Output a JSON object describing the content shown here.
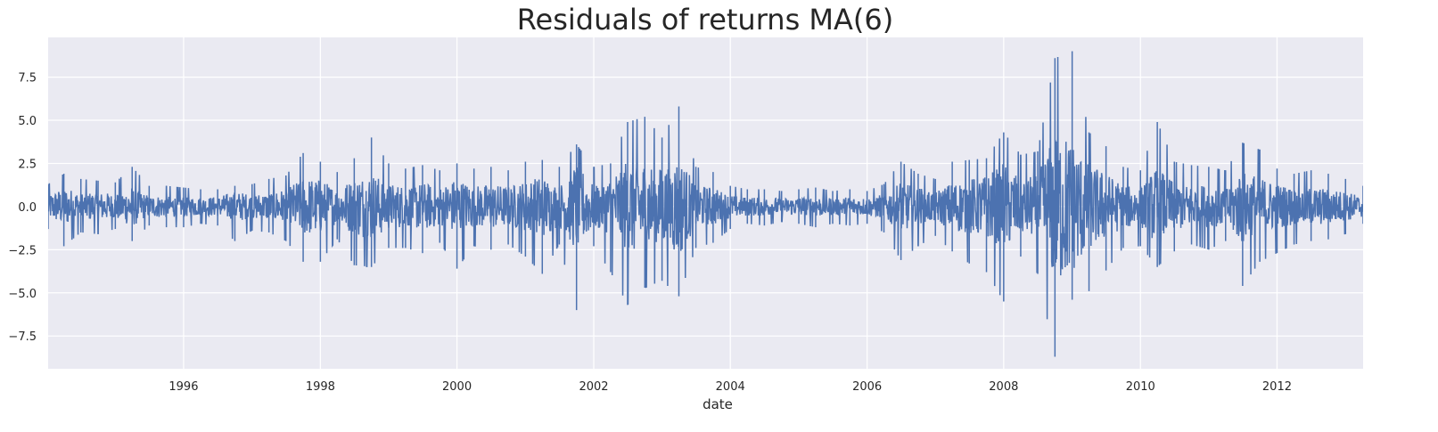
{
  "chart_data": {
    "type": "line",
    "title": "Residuals of returns MA(6)",
    "xlabel": "date",
    "ylabel": "",
    "xlim": [
      "1994-01-07",
      "2013-04-05"
    ],
    "ylim": [
      -9.4,
      9.8
    ],
    "x_ticks": [
      "1996",
      "1998",
      "2000",
      "2002",
      "2004",
      "2006",
      "2008",
      "2010",
      "2012"
    ],
    "y_ticks": [
      "7.5",
      "5.0",
      "2.5",
      "0.0",
      "−2.5",
      "−5.0",
      "−7.5"
    ],
    "y_tick_values": [
      7.5,
      5.0,
      2.5,
      0.0,
      -2.5,
      -5.0,
      -7.5
    ],
    "grid": true,
    "background": "#eaeaf2",
    "grid_color": "#ffffff",
    "series": [
      {
        "color": "#4c72b0",
        "x": [
          "1994-01-07",
          "1994-04-01",
          "1994-07-01",
          "1994-10-01",
          "1995-01-01",
          "1995-04-01",
          "1995-07-01",
          "1995-10-01",
          "1996-01-01",
          "1996-04-01",
          "1996-07-01",
          "1996-10-01",
          "1997-01-01",
          "1997-04-01",
          "1997-07-01",
          "1997-10-01",
          "1998-01-01",
          "1998-04-01",
          "1998-07-01",
          "1998-10-01",
          "1999-01-01",
          "1999-04-01",
          "1999-07-01",
          "1999-10-01",
          "2000-01-01",
          "2000-04-01",
          "2000-07-01",
          "2000-10-01",
          "2001-01-01",
          "2001-04-01",
          "2001-07-01",
          "2001-10-01",
          "2002-01-01",
          "2002-04-01",
          "2002-07-01",
          "2002-10-01",
          "2003-01-01",
          "2003-04-01",
          "2003-07-01",
          "2003-10-01",
          "2004-01-01",
          "2004-04-01",
          "2004-07-01",
          "2004-10-01",
          "2005-01-01",
          "2005-04-01",
          "2005-07-01",
          "2005-10-01",
          "2006-01-01",
          "2006-04-01",
          "2006-07-01",
          "2006-10-01",
          "2007-01-01",
          "2007-04-01",
          "2007-07-01",
          "2007-10-01",
          "2008-01-01",
          "2008-04-01",
          "2008-07-01",
          "2008-10-01",
          "2009-01-01",
          "2009-04-01",
          "2009-07-01",
          "2009-10-01",
          "2010-01-01",
          "2010-04-01",
          "2010-07-01",
          "2010-10-01",
          "2011-01-01",
          "2011-04-01",
          "2011-07-01",
          "2011-10-01",
          "2012-01-01",
          "2012-04-01",
          "2012-07-01",
          "2012-10-01",
          "2013-01-01",
          "2013-04-05"
        ],
        "upper": [
          1.3,
          1.9,
          1.6,
          1.5,
          1.4,
          2.3,
          1.2,
          1.2,
          1.1,
          1.0,
          1.0,
          1.2,
          1.3,
          1.6,
          1.8,
          3.1,
          2.6,
          2.0,
          2.8,
          4.0,
          2.5,
          2.2,
          2.4,
          2.1,
          2.5,
          2.2,
          2.3,
          2.1,
          2.6,
          2.7,
          2.3,
          3.6,
          2.3,
          2.5,
          4.9,
          5.2,
          4.0,
          5.8,
          2.3,
          2.0,
          1.2,
          1.0,
          1.0,
          0.9,
          1.0,
          1.1,
          0.9,
          1.0,
          0.9,
          1.3,
          2.6,
          1.9,
          1.6,
          2.6,
          2.7,
          2.8,
          4.3,
          3.0,
          3.2,
          8.6,
          9.0,
          4.3,
          3.5,
          2.3,
          2.1,
          4.9,
          2.6,
          2.4,
          2.3,
          2.1,
          3.7,
          3.3,
          2.2,
          1.9,
          2.1,
          1.9,
          1.6,
          1.2
        ],
        "lower": [
          -1.3,
          -2.3,
          -1.5,
          -1.6,
          -1.3,
          -2.0,
          -1.1,
          -1.2,
          -1.2,
          -1.0,
          -1.1,
          -2.0,
          -1.4,
          -1.5,
          -2.0,
          -3.2,
          -3.2,
          -1.9,
          -3.4,
          -3.5,
          -2.4,
          -2.4,
          -2.7,
          -2.1,
          -3.6,
          -2.3,
          -2.5,
          -2.2,
          -2.9,
          -3.9,
          -2.2,
          -6.0,
          -2.3,
          -3.8,
          -5.7,
          -4.7,
          -4.3,
          -5.2,
          -2.4,
          -2.1,
          -1.3,
          -1.0,
          -1.1,
          -0.9,
          -1.0,
          -1.2,
          -1.0,
          -1.1,
          -1.0,
          -1.5,
          -3.1,
          -2.3,
          -1.7,
          -2.6,
          -3.3,
          -3.8,
          -5.5,
          -2.9,
          -3.9,
          -8.7,
          -5.4,
          -4.9,
          -3.7,
          -2.4,
          -2.3,
          -3.5,
          -2.6,
          -2.2,
          -2.5,
          -2.0,
          -4.6,
          -3.2,
          -2.7,
          -2.2,
          -2.0,
          -1.9,
          -1.6,
          -1.0
        ]
      }
    ]
  }
}
